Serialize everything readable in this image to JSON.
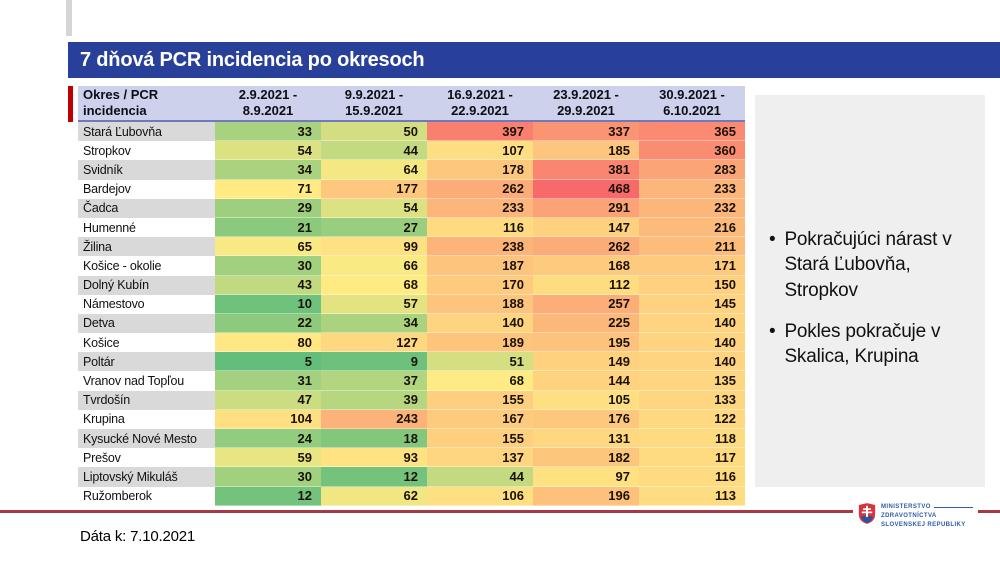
{
  "title": "7 dňová PCR incidencia po okresoch",
  "chart_data": {
    "type": "heatmap",
    "title": "7 dňová PCR incidencia po okresoch",
    "row_header": [
      "Okres / PCR",
      "incidencia"
    ],
    "columns": [
      {
        "line1": "2.9.2021 -",
        "line2": "8.9.2021"
      },
      {
        "line1": "9.9.2021 -",
        "line2": "15.9.2021"
      },
      {
        "line1": "16.9.2021 -",
        "line2": "22.9.2021"
      },
      {
        "line1": "23.9.2021 -",
        "line2": "29.9.2021"
      },
      {
        "line1": "30.9.2021 -",
        "line2": "6.10.2021"
      }
    ],
    "rows": [
      {
        "name": "Stará Ľubovňa",
        "values": [
          33,
          50,
          397,
          337,
          365
        ]
      },
      {
        "name": "Stropkov",
        "values": [
          54,
          44,
          107,
          185,
          360
        ]
      },
      {
        "name": "Svidník",
        "values": [
          34,
          64,
          178,
          381,
          283
        ]
      },
      {
        "name": "Bardejov",
        "values": [
          71,
          177,
          262,
          468,
          233
        ]
      },
      {
        "name": "Čadca",
        "values": [
          29,
          54,
          233,
          291,
          232
        ]
      },
      {
        "name": "Humenné",
        "values": [
          21,
          27,
          116,
          147,
          216
        ]
      },
      {
        "name": "Žilina",
        "values": [
          65,
          99,
          238,
          262,
          211
        ]
      },
      {
        "name": "Košice - okolie",
        "values": [
          30,
          66,
          187,
          168,
          171
        ]
      },
      {
        "name": "Dolný Kubín",
        "values": [
          43,
          68,
          170,
          112,
          150
        ]
      },
      {
        "name": "Námestovo",
        "values": [
          10,
          57,
          188,
          257,
          145
        ]
      },
      {
        "name": "Detva",
        "values": [
          22,
          34,
          140,
          225,
          140
        ]
      },
      {
        "name": "Košice",
        "values": [
          80,
          127,
          189,
          195,
          140
        ]
      },
      {
        "name": "Poltár",
        "values": [
          5,
          9,
          51,
          149,
          140
        ]
      },
      {
        "name": "Vranov nad Topľou",
        "values": [
          31,
          37,
          68,
          144,
          135
        ]
      },
      {
        "name": "Tvrdošín",
        "values": [
          47,
          39,
          155,
          105,
          133
        ]
      },
      {
        "name": "Krupina",
        "values": [
          104,
          243,
          167,
          176,
          122
        ]
      },
      {
        "name": "Kysucké Nové Mesto",
        "values": [
          24,
          18,
          155,
          131,
          118
        ]
      },
      {
        "name": "Prešov",
        "values": [
          59,
          93,
          137,
          182,
          117
        ]
      },
      {
        "name": "Liptovský Mikuláš",
        "values": [
          30,
          12,
          44,
          97,
          116
        ]
      },
      {
        "name": "Ružomberok",
        "values": [
          12,
          62,
          106,
          196,
          113
        ]
      }
    ],
    "color_scale": {
      "min_color": "#63BE7B",
      "mid_color": "#FFEB84",
      "max_color": "#F8696B",
      "min_value": 5,
      "mid_value": 68,
      "max_value": 468
    }
  },
  "notes": {
    "bullets": [
      "Pokračujúci nárast v Stará Ľubovňa, Stropkov",
      "Pokles pokračuje v Skalica, Krupina"
    ]
  },
  "footer": {
    "data_as_of": "Dáta k: 7.10.2021",
    "logo_lines": [
      "MINISTERSTVO",
      "ZDRAVOTNÍCTVA",
      "SLOVENSKEJ REPUBLIKY"
    ]
  },
  "colors": {
    "title_bar": "#28409a",
    "header_bg": "#cdd1eb",
    "header_border": "#6f79bb",
    "accent_red": "#c00000",
    "bottom_line": "#a53a44",
    "panel_bg": "#efefef",
    "row_alt": "#d9d9d9"
  }
}
